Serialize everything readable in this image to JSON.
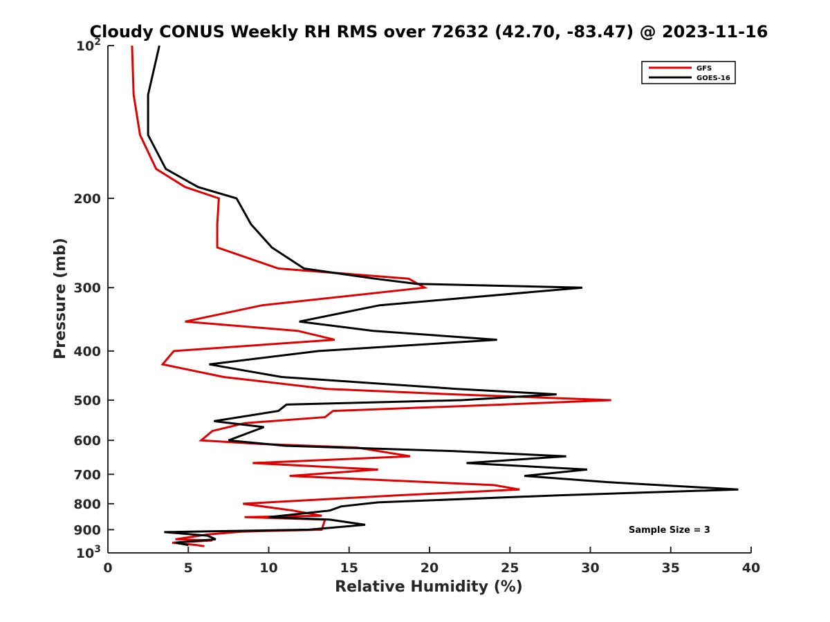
{
  "chart_data": {
    "type": "line",
    "title": "Cloudy CONUS Weekly RH RMS over 72632 (42.70, -83.47) @ 2023-11-16",
    "xlabel": "Relative Humidity (%)",
    "ylabel": "Pressure (mb)",
    "xlim": [
      0,
      40
    ],
    "ylim": [
      100,
      1000
    ],
    "yscale": "log",
    "y_reversed": true,
    "x_ticks": [
      0,
      5,
      10,
      15,
      20,
      25,
      30,
      35,
      40
    ],
    "x_tick_labels": [
      "0",
      "5",
      "10",
      "15",
      "20",
      "25",
      "30",
      "35",
      "40"
    ],
    "y_ticks": [
      100,
      200,
      300,
      400,
      500,
      600,
      700,
      800,
      900,
      1000
    ],
    "y_tick_labels": [
      {
        "base": "10",
        "exp": "2"
      },
      {
        "base": "200",
        "exp": ""
      },
      {
        "base": "300",
        "exp": ""
      },
      {
        "base": "400",
        "exp": ""
      },
      {
        "base": "500",
        "exp": ""
      },
      {
        "base": "600",
        "exp": ""
      },
      {
        "base": "700",
        "exp": ""
      },
      {
        "base": "800",
        "exp": ""
      },
      {
        "base": "900",
        "exp": ""
      },
      {
        "base": "10",
        "exp": "3"
      }
    ],
    "grid": false,
    "legend": {
      "position": "top-right",
      "entries": [
        "GFS",
        "GOES-16"
      ]
    },
    "annotation": "Sample Size = 3",
    "series": [
      {
        "name": "GFS",
        "color": "#e00000",
        "points": [
          [
            1.5,
            100
          ],
          [
            1.6,
            125
          ],
          [
            2.0,
            150
          ],
          [
            3.0,
            175
          ],
          [
            4.8,
            190
          ],
          [
            6.9,
            200
          ],
          [
            6.8,
            225
          ],
          [
            6.8,
            250
          ],
          [
            10.6,
            275
          ],
          [
            18.7,
            288
          ],
          [
            19.7,
            300
          ],
          [
            9.6,
            325
          ],
          [
            4.8,
            350
          ],
          [
            11.8,
            365
          ],
          [
            14.1,
            380
          ],
          [
            4.1,
            400
          ],
          [
            3.4,
            425
          ],
          [
            7.2,
            450
          ],
          [
            13.6,
            475
          ],
          [
            21.5,
            487
          ],
          [
            31.3,
            500
          ],
          [
            24.5,
            510
          ],
          [
            14.0,
            525
          ],
          [
            13.5,
            540
          ],
          [
            8.5,
            555
          ],
          [
            6.5,
            575
          ],
          [
            5.8,
            600
          ],
          [
            9.5,
            610
          ],
          [
            15.5,
            620
          ],
          [
            18.8,
            645
          ],
          [
            9.0,
            665
          ],
          [
            16.8,
            685
          ],
          [
            11.3,
            705
          ],
          [
            24.0,
            735
          ],
          [
            25.6,
            750
          ],
          [
            18.0,
            770
          ],
          [
            8.4,
            800
          ],
          [
            11.5,
            825
          ],
          [
            13.3,
            845
          ],
          [
            8.5,
            850
          ],
          [
            13.5,
            860
          ],
          [
            13.3,
            900
          ],
          [
            8.3,
            908
          ],
          [
            6.2,
            920
          ],
          [
            4.2,
            940
          ],
          [
            6.5,
            945
          ],
          [
            4.0,
            955
          ],
          [
            5.5,
            965
          ],
          [
            6.0,
            970
          ]
        ]
      },
      {
        "name": "GOES-16",
        "color": "#000000",
        "points": [
          [
            3.2,
            100
          ],
          [
            2.5,
            125
          ],
          [
            2.5,
            150
          ],
          [
            3.6,
            175
          ],
          [
            5.6,
            190
          ],
          [
            8.0,
            200
          ],
          [
            8.9,
            225
          ],
          [
            10.2,
            250
          ],
          [
            12.2,
            275
          ],
          [
            16.6,
            288
          ],
          [
            19.2,
            295
          ],
          [
            29.5,
            300
          ],
          [
            16.9,
            325
          ],
          [
            11.9,
            350
          ],
          [
            16.5,
            365
          ],
          [
            24.2,
            380
          ],
          [
            13.1,
            400
          ],
          [
            6.3,
            425
          ],
          [
            10.8,
            450
          ],
          [
            21.7,
            475
          ],
          [
            27.9,
            487
          ],
          [
            22.0,
            500
          ],
          [
            11.1,
            510
          ],
          [
            10.6,
            525
          ],
          [
            6.6,
            550
          ],
          [
            9.7,
            565
          ],
          [
            7.5,
            600
          ],
          [
            11.0,
            615
          ],
          [
            21.5,
            630
          ],
          [
            28.5,
            645
          ],
          [
            22.3,
            665
          ],
          [
            29.8,
            685
          ],
          [
            25.9,
            705
          ],
          [
            31.0,
            725
          ],
          [
            39.2,
            750
          ],
          [
            28.0,
            770
          ],
          [
            16.8,
            795
          ],
          [
            14.5,
            810
          ],
          [
            13.8,
            825
          ],
          [
            10.0,
            850
          ],
          [
            13.8,
            860
          ],
          [
            16.0,
            880
          ],
          [
            12.5,
            900
          ],
          [
            3.5,
            910
          ],
          [
            6.2,
            925
          ],
          [
            6.7,
            940
          ],
          [
            4.2,
            955
          ],
          [
            5.0,
            965
          ]
        ]
      }
    ]
  }
}
